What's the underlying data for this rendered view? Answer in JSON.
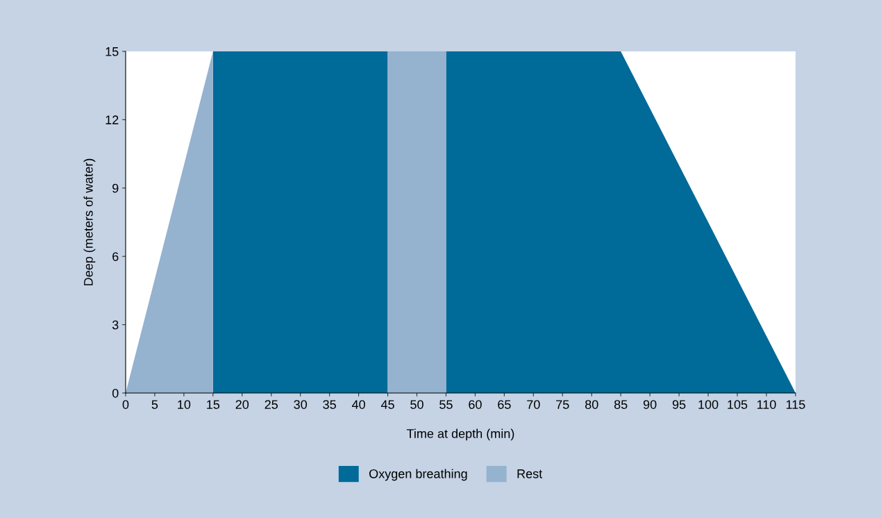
{
  "chart_data": {
    "type": "area",
    "xlabel": "Time at depth (min)",
    "ylabel": "Deep (meters of water)",
    "series": [
      {
        "name": "Oxygen breathing",
        "color": "#006a99",
        "x": [
          15,
          45,
          50,
          55,
          85,
          115
        ],
        "values": [
          15,
          15,
          null,
          15,
          15,
          0
        ]
      },
      {
        "name": "Rest",
        "color": "#95b2cf",
        "x": [
          0,
          15,
          30,
          45,
          55
        ],
        "values": [
          0,
          15,
          null,
          15,
          15
        ]
      }
    ],
    "xlim": [
      0,
      115
    ],
    "xticks": [
      0,
      5,
      10,
      15,
      20,
      25,
      30,
      35,
      40,
      45,
      50,
      55,
      60,
      65,
      70,
      75,
      80,
      85,
      90,
      95,
      100,
      105,
      110,
      115
    ],
    "ylim": [
      0,
      15
    ],
    "yticks": [
      0,
      3,
      6,
      9,
      12,
      15
    ],
    "grid": false,
    "legend": "bottom"
  }
}
